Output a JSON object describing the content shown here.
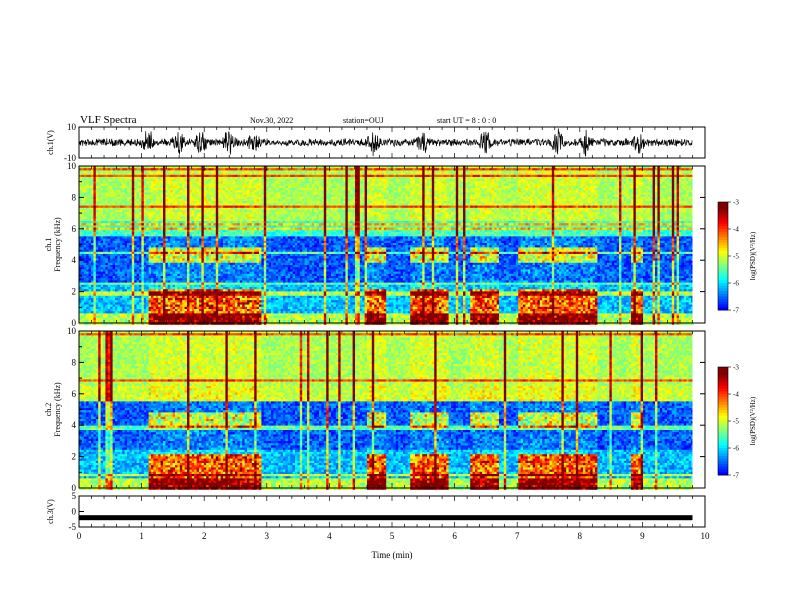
{
  "header": {
    "title": "VLF Spectra",
    "date": "Nov.30, 2022",
    "station": "station=OUJ",
    "start": "start UT =  8 : 0 : 0"
  },
  "chart_data": [
    {
      "type": "line",
      "panel": "ch1-waveform",
      "ylabel": "ch.1(V)",
      "ylim": [
        -10,
        10
      ],
      "yticks": [
        "10",
        "-10"
      ],
      "xlim": [
        0,
        10
      ],
      "baseline": 0,
      "bursts_min": [
        1.1,
        1.6,
        1.95,
        2.4,
        2.8,
        4.7,
        5.5,
        6.5,
        7.65,
        8.1,
        8.95
      ]
    },
    {
      "type": "heatmap",
      "panel": "ch1-spectrogram",
      "ylabel": "ch.1 Frequency (kHz)",
      "ylim": [
        0,
        10
      ],
      "yticks": [
        0,
        2,
        4,
        6,
        8,
        10
      ],
      "xlim": [
        0,
        10
      ],
      "colorbar": {
        "label": "log(PSD)(V²/Hz)",
        "ticks": [
          "-3",
          "-4",
          "-5",
          "-6",
          "-7"
        ],
        "range": [
          -7,
          -3
        ]
      },
      "colors": [
        "#00007f",
        "#0000ff",
        "#007fff",
        "#00ffff",
        "#7fff7f",
        "#ffff00",
        "#ff7f00",
        "#ff0000",
        "#ffffff"
      ],
      "activity_min": [
        [
          1.1,
          2.9
        ],
        [
          4.6,
          4.9
        ],
        [
          5.3,
          5.9
        ],
        [
          6.25,
          6.7
        ],
        [
          7.0,
          8.3
        ],
        [
          8.8,
          9.0
        ]
      ]
    },
    {
      "type": "heatmap",
      "panel": "ch2-spectrogram",
      "ylabel": "ch.2 Frequency (kHz)",
      "ylim": [
        0,
        10
      ],
      "yticks": [
        0,
        2,
        4,
        6,
        8,
        10
      ],
      "xlim": [
        0,
        10
      ],
      "colorbar": {
        "label": "log(PSD)(V²/Hz)",
        "ticks": [
          "-3",
          "-4",
          "-5",
          "-6",
          "-7"
        ],
        "range": [
          -7,
          -3
        ]
      },
      "activity_min": [
        [
          1.1,
          2.9
        ],
        [
          4.6,
          4.9
        ],
        [
          5.3,
          5.9
        ],
        [
          6.25,
          6.7
        ],
        [
          7.0,
          8.3
        ],
        [
          8.8,
          9.0
        ]
      ]
    },
    {
      "type": "line",
      "panel": "ch3-waveform",
      "ylabel": "ch.3(V)",
      "ylim": [
        -5,
        5
      ],
      "yticks": [
        "5",
        "0",
        "-5"
      ],
      "xlim": [
        0,
        10
      ],
      "values_constant": -2,
      "xlabel": "Time  (min)",
      "xticks": [
        "0",
        "1",
        "2",
        "3",
        "4",
        "5",
        "6",
        "7",
        "8",
        "9",
        "10"
      ],
      "data_end_min": 9.8
    }
  ]
}
